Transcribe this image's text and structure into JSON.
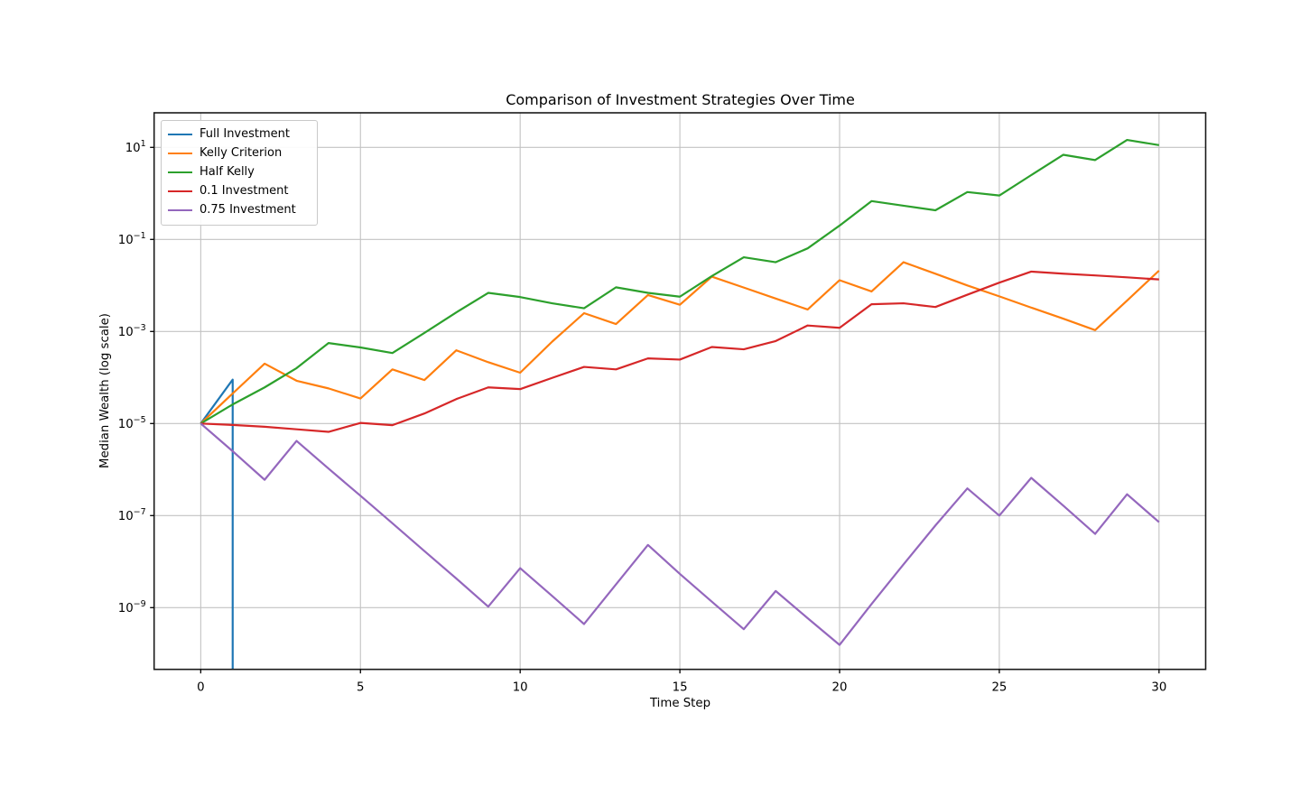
{
  "chart_data": {
    "type": "line",
    "title": "Comparison of Investment Strategies Over Time",
    "xlabel": "Time Step",
    "ylabel": "Median Wealth (log scale)",
    "yscale": "log",
    "grid": true,
    "legend_position": "upper left",
    "x": [
      0,
      1,
      2,
      3,
      4,
      5,
      6,
      7,
      8,
      9,
      10,
      11,
      12,
      13,
      14,
      15,
      16,
      17,
      18,
      19,
      20,
      21,
      22,
      23,
      24,
      25,
      26,
      27,
      28,
      29,
      30
    ],
    "x_ticks": [
      0,
      5,
      10,
      15,
      20,
      25,
      30
    ],
    "y_tick_exponents": [
      1,
      -1,
      -3,
      -5,
      -7,
      -9
    ],
    "xlim": [
      -1.46,
      31.46
    ],
    "ylim_log10": [
      -10.341,
      1.751
    ],
    "series": [
      {
        "name": "Full Investment",
        "color": "#1f77b4",
        "values": [
          1e-05,
          9e-05,
          0
        ]
      },
      {
        "name": "Kelly Criterion",
        "color": "#ff7f0e",
        "values": [
          1e-05,
          4.5e-05,
          0.0002,
          8.5e-05,
          5.8e-05,
          3.5e-05,
          0.00015,
          8.8e-05,
          0.00039,
          0.000215,
          0.000127,
          0.0006,
          0.0025,
          0.00145,
          0.0062,
          0.0038,
          0.0155,
          0.009,
          0.0052,
          0.003,
          0.013,
          0.0074,
          0.032,
          0.018,
          0.01,
          0.0058,
          0.0033,
          0.0019,
          0.00107,
          0.0047,
          0.021
        ]
      },
      {
        "name": "Half Kelly",
        "color": "#2ca02c",
        "values": [
          1e-05,
          2.6e-05,
          6.1e-05,
          0.00016,
          0.00056,
          0.00045,
          0.00034,
          0.00093,
          0.0026,
          0.0069,
          0.0056,
          0.0041,
          0.0032,
          0.0091,
          0.0069,
          0.0057,
          0.016,
          0.041,
          0.032,
          0.064,
          0.2,
          0.68,
          0.54,
          0.43,
          1.07,
          0.9,
          2.5,
          6.9,
          5.3,
          14.5,
          11.2
        ]
      },
      {
        "name": "0.1 Investment",
        "color": "#d62728",
        "values": [
          1e-05,
          9.3e-06,
          8.5e-06,
          7.5e-06,
          6.6e-06,
          1.03e-05,
          9.2e-06,
          1.65e-05,
          3.4e-05,
          6.1e-05,
          5.6e-05,
          9.8e-05,
          0.00017,
          0.00015,
          0.00026,
          0.000245,
          0.00046,
          0.00041,
          0.00062,
          0.00135,
          0.0012,
          0.0039,
          0.0041,
          0.0034,
          0.0063,
          0.0115,
          0.02,
          0.018,
          0.0165,
          0.015,
          0.0135
        ]
      },
      {
        "name": "0.75 Investment",
        "color": "#9467bd",
        "values": [
          1e-05,
          2.5e-06,
          6e-07,
          4.2e-06,
          1.05e-06,
          2.7e-07,
          6.8e-08,
          1.7e-08,
          4.3e-09,
          1.05e-09,
          7.2e-09,
          1.8e-09,
          4.4e-10,
          3.2e-09,
          2.3e-08,
          5.4e-09,
          1.35e-09,
          3.4e-10,
          2.3e-09,
          5.9e-10,
          1.55e-10,
          1.2e-09,
          8.7e-09,
          6.1e-08,
          3.9e-07,
          1e-07,
          6.6e-07,
          1.65e-07,
          4e-08,
          2.9e-07,
          7.2e-08
        ]
      }
    ],
    "style": {
      "grid_color": "#c2c2c2",
      "spine_color": "#1a1a1a",
      "background": "#ffffff"
    }
  }
}
